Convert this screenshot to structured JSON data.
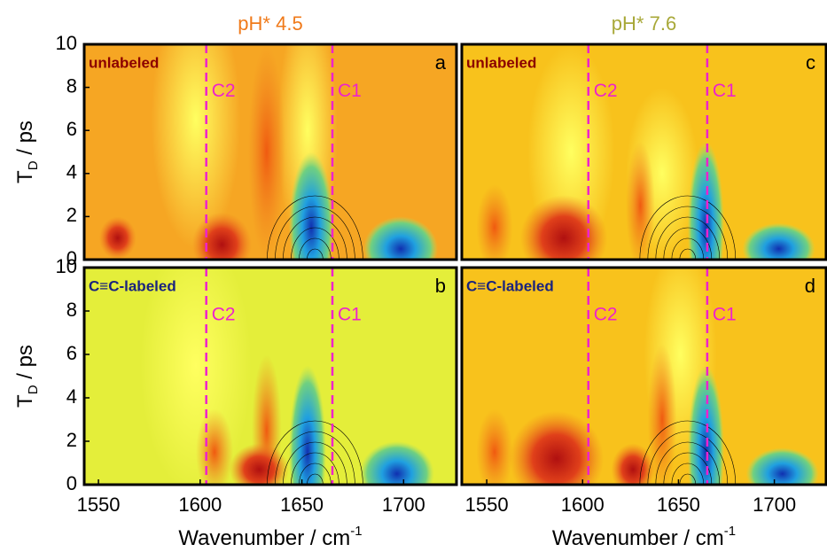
{
  "chart_data": [
    {
      "type": "contour",
      "title": "pH* 4.5",
      "title_color": "#f07a1a",
      "panel_label": "a",
      "tag": "unlabeled",
      "tag_color": "#8b0000",
      "ylabel": "T",
      "ylabel_sub": "D",
      "ylabel_rest": " / ps",
      "xlim": [
        1543,
        1726
      ],
      "ylim": [
        0,
        10
      ],
      "yticks": [
        0,
        2,
        4,
        6,
        8,
        10
      ],
      "annotations": [
        {
          "label": "C2",
          "x": 1603
        },
        {
          "label": "C1",
          "x": 1665
        }
      ],
      "annotation_color": "#ee22cc"
    },
    {
      "type": "contour",
      "panel_label": "b",
      "tag": "C≡C-labeled",
      "tag_color": "#1a237e",
      "ylabel": "T",
      "ylabel_sub": "D",
      "ylabel_rest": " / ps",
      "xlabel": "Wavenumber / cm",
      "xlabel_sup": "-1",
      "xlim": [
        1543,
        1726
      ],
      "ylim": [
        0,
        10
      ],
      "xticks": [
        1550,
        1600,
        1650,
        1700
      ],
      "yticks": [
        0,
        2,
        4,
        6,
        8,
        10
      ],
      "annotations": [
        {
          "label": "C2",
          "x": 1603
        },
        {
          "label": "C1",
          "x": 1665
        }
      ],
      "annotation_color": "#ee22cc"
    },
    {
      "type": "contour",
      "title": "pH* 7.6",
      "title_color": "#a8a838",
      "panel_label": "c",
      "tag": "unlabeled",
      "tag_color": "#8b0000",
      "xlim": [
        1537,
        1727
      ],
      "ylim": [
        0,
        10
      ],
      "annotations": [
        {
          "label": "C2",
          "x": 1603
        },
        {
          "label": "C1",
          "x": 1665
        }
      ],
      "annotation_color": "#ee22cc"
    },
    {
      "type": "contour",
      "panel_label": "d",
      "tag": "C≡C-labeled",
      "tag_color": "#1a237e",
      "xlabel": "Wavenumber / cm",
      "xlabel_sup": "-1",
      "xlim": [
        1537,
        1727
      ],
      "ylim": [
        0,
        10
      ],
      "xticks": [
        1550,
        1600,
        1650,
        1700
      ],
      "annotations": [
        {
          "label": "C2",
          "x": 1603
        },
        {
          "label": "C1",
          "x": 1665
        }
      ],
      "annotation_color": "#ee22cc"
    }
  ]
}
